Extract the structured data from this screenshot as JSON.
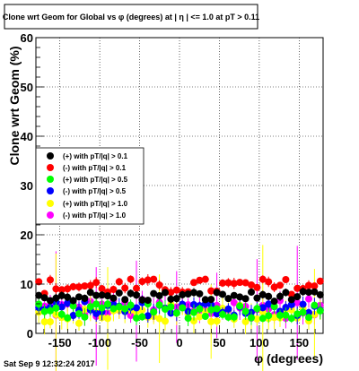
{
  "chart_data": {
    "type": "scatter",
    "title": "Clone wrt Geom for Global vs φ (degrees) at | η | <= 1.0 at pT > 0.11",
    "xlabel": "φ (degrees)",
    "ylabel": "Clone wrt Geom (%)",
    "xlim": [
      -180,
      180
    ],
    "ylim": [
      0,
      60
    ],
    "x_ticks": [
      "-150",
      "-100",
      "-50",
      "0",
      "50",
      "100",
      "150"
    ],
    "x_tick_values": [
      -150,
      -100,
      -50,
      0,
      50,
      100,
      150
    ],
    "y_ticks": [
      "0",
      "10",
      "20",
      "30",
      "40",
      "50",
      "60"
    ],
    "y_tick_values": [
      0,
      10,
      20,
      30,
      40,
      50,
      60
    ],
    "grid": true,
    "legend_position": "middle-left",
    "series": [
      {
        "name": "(+) with pT/|q| > 0.1",
        "color": "#000000",
        "base": 7.5,
        "amp": 1.0,
        "err": 0.6,
        "spike_every": 0
      },
      {
        "name": "(-) with pT/|q| > 0.1",
        "color": "#ff0000",
        "base": 9.5,
        "amp": 1.6,
        "err": 0.8,
        "spike_every": 0
      },
      {
        "name": "(+) with pT/|q| > 0.5",
        "color": "#00ff00",
        "base": 4.5,
        "amp": 1.5,
        "err": 1.2,
        "spike_every": 0
      },
      {
        "name": "(-) with pT/|q| > 0.5",
        "color": "#0000ff",
        "base": 5.0,
        "amp": 1.5,
        "err": 1.2,
        "spike_every": 0
      },
      {
        "name": "(+) with pT/|q| > 1.0",
        "color": "#ffff00",
        "base": 4.0,
        "amp": 2.0,
        "err": 1.8,
        "spike_every": 9
      },
      {
        "name": "(-) with pT/|q| > 1.0",
        "color": "#ff00ff",
        "base": 5.0,
        "amp": 2.0,
        "err": 1.8,
        "spike_every": 7
      }
    ]
  },
  "footer": {
    "timestamp": "Sat Sep  9 12:32:24 2017"
  }
}
